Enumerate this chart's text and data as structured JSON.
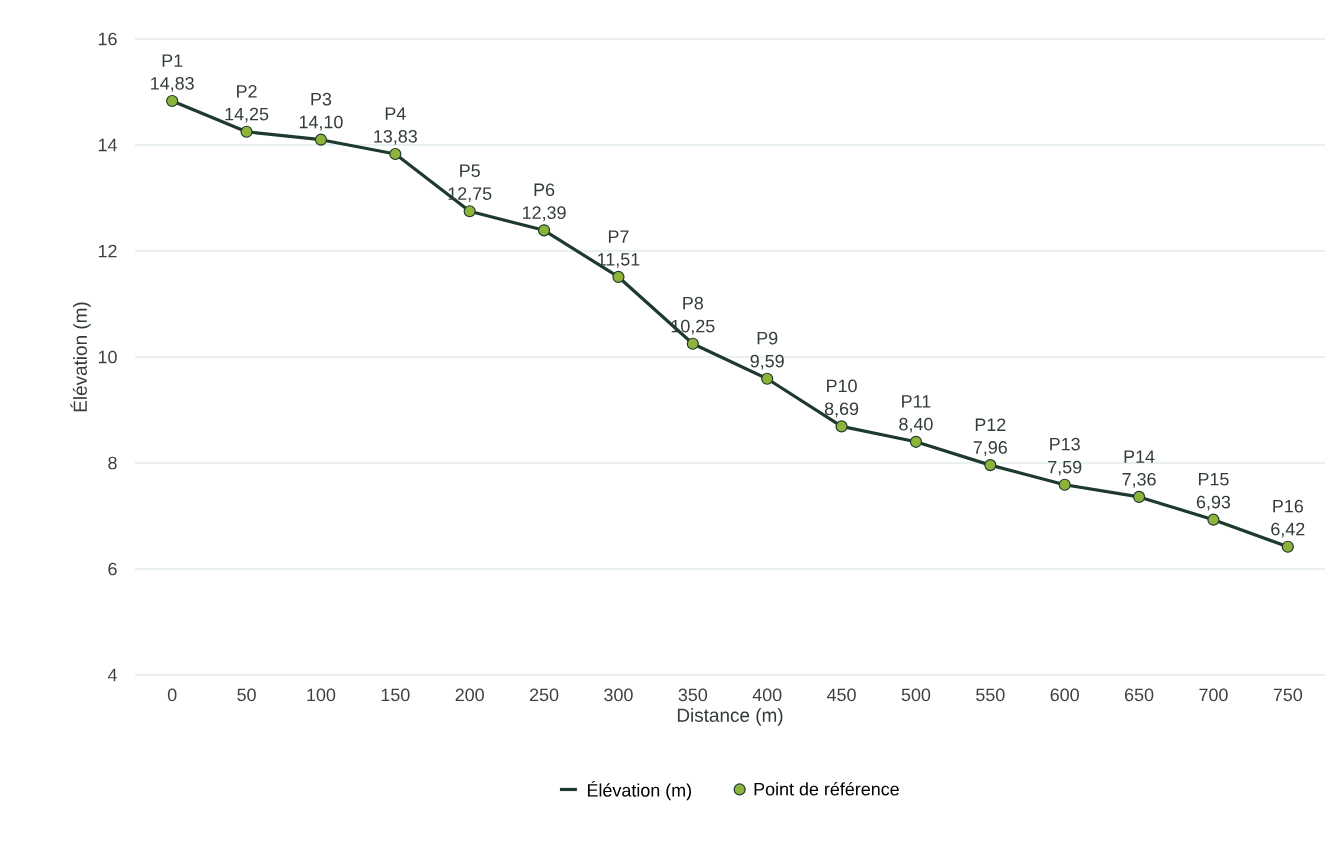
{
  "chart_data": {
    "type": "line",
    "xlabel": "Distance (m)",
    "ylabel": "Élévation (m)",
    "categories": [
      "0",
      "50",
      "100",
      "150",
      "200",
      "250",
      "300",
      "350",
      "400",
      "450",
      "500",
      "550",
      "600",
      "650",
      "700",
      "750"
    ],
    "ylim": [
      4,
      16
    ],
    "yticks": [
      4,
      6,
      8,
      10,
      12,
      14,
      16
    ],
    "grid": "y",
    "legend": "bottom",
    "series": [
      {
        "name": "Élévation (m)",
        "color": "#1e3a30",
        "marker": "none",
        "line_style": "solid",
        "values": [
          14.83,
          14.25,
          14.1,
          13.83,
          12.75,
          12.39,
          11.51,
          10.25,
          9.59,
          8.69,
          8.4,
          7.96,
          7.59,
          7.36,
          6.93,
          6.42
        ]
      },
      {
        "name": "Point de référence",
        "type": "scatter",
        "color": "#8db33a",
        "marker": "circle",
        "values": [
          14.83,
          14.25,
          14.1,
          13.83,
          12.75,
          12.39,
          11.51,
          10.25,
          9.59,
          8.69,
          8.4,
          7.96,
          7.59,
          7.36,
          6.93,
          6.42
        ],
        "value_labels": [
          "14,83",
          "14,25",
          "14,10",
          "13,83",
          "12,75",
          "12,39",
          "11,51",
          "10,25",
          "9,59",
          "8,69",
          "8,40",
          "7,96",
          "7,59",
          "7,36",
          "6,93",
          "6,42"
        ]
      }
    ],
    "annotations": [
      {
        "text": "P1",
        "x": "0",
        "y": 14.83
      },
      {
        "text": "P2",
        "x": "50",
        "y": 14.25
      },
      {
        "text": "P3",
        "x": "100",
        "y": 14.1
      },
      {
        "text": "P4",
        "x": "150",
        "y": 13.83
      },
      {
        "text": "P5",
        "x": "200",
        "y": 12.75
      },
      {
        "text": "P6",
        "x": "250",
        "y": 12.39
      },
      {
        "text": "P7",
        "x": "300",
        "y": 11.51
      },
      {
        "text": "P8",
        "x": "350",
        "y": 10.25
      },
      {
        "text": "P9",
        "x": "400",
        "y": 9.59
      },
      {
        "text": "P10",
        "x": "450",
        "y": 8.69
      },
      {
        "text": "P11",
        "x": "500",
        "y": 8.4
      },
      {
        "text": "P12",
        "x": "550",
        "y": 7.96
      },
      {
        "text": "P13",
        "x": "600",
        "y": 7.59
      },
      {
        "text": "P14",
        "x": "650",
        "y": 7.36
      },
      {
        "text": "P15",
        "x": "700",
        "y": 6.93
      },
      {
        "text": "P16",
        "x": "750",
        "y": 6.42
      }
    ]
  }
}
